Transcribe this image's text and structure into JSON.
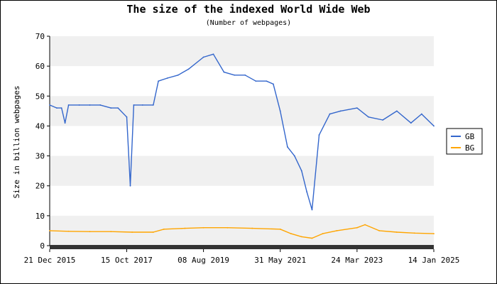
{
  "chart_data": {
    "type": "line",
    "title": "The size of the indexed World Wide Web",
    "subtitle": "(Number of webpages)",
    "xlabel": "",
    "ylabel": "Size in billion webpages",
    "ylim": [
      0,
      70
    ],
    "yticks": [
      0,
      10,
      20,
      30,
      40,
      50,
      60,
      70
    ],
    "x_start": "2015-12-21",
    "x_end": "2025-01-14",
    "xticks": [
      "21 Dec 2015",
      "15 Oct 2017",
      "08 Aug 2019",
      "31 May 2021",
      "24 Mar 2023",
      "14 Jan 2025"
    ],
    "xtick_dates": [
      "2015-12-21",
      "2017-10-15",
      "2019-08-08",
      "2021-05-31",
      "2023-03-24",
      "2025-01-14"
    ],
    "grid": "horizontal bands",
    "legend_position": "right",
    "series": [
      {
        "name": "GB",
        "color": "#3366cc",
        "points": [
          [
            "2015-12-21",
            47
          ],
          [
            "2016-02-20",
            46
          ],
          [
            "2016-04-01",
            46
          ],
          [
            "2016-05-01",
            41
          ],
          [
            "2016-06-01",
            47
          ],
          [
            "2016-09-01",
            47
          ],
          [
            "2016-12-01",
            47
          ],
          [
            "2017-03-01",
            47
          ],
          [
            "2017-06-01",
            46
          ],
          [
            "2017-08-01",
            46
          ],
          [
            "2017-10-15",
            43
          ],
          [
            "2017-11-15",
            20
          ],
          [
            "2017-12-15",
            47
          ],
          [
            "2018-03-01",
            47
          ],
          [
            "2018-06-01",
            47
          ],
          [
            "2018-07-15",
            55
          ],
          [
            "2018-10-01",
            56
          ],
          [
            "2019-01-01",
            57
          ],
          [
            "2019-04-01",
            59
          ],
          [
            "2019-08-08",
            63
          ],
          [
            "2019-11-01",
            64
          ],
          [
            "2020-02-01",
            58
          ],
          [
            "2020-05-01",
            57
          ],
          [
            "2020-08-01",
            57
          ],
          [
            "2020-11-01",
            55
          ],
          [
            "2021-02-01",
            55
          ],
          [
            "2021-04-01",
            54
          ],
          [
            "2021-05-31",
            45
          ],
          [
            "2021-08-01",
            33
          ],
          [
            "2021-10-01",
            30
          ],
          [
            "2021-12-01",
            25
          ],
          [
            "2022-01-15",
            18
          ],
          [
            "2022-03-01",
            12
          ],
          [
            "2022-05-01",
            37
          ],
          [
            "2022-08-01",
            44
          ],
          [
            "2022-11-01",
            45
          ],
          [
            "2023-03-24",
            46
          ],
          [
            "2023-07-01",
            43
          ],
          [
            "2023-11-01",
            42
          ],
          [
            "2024-03-01",
            45
          ],
          [
            "2024-07-01",
            41
          ],
          [
            "2024-10-01",
            44
          ],
          [
            "2025-01-14",
            40
          ]
        ]
      },
      {
        "name": "BG",
        "color": "#ffa500",
        "points": [
          [
            "2015-12-21",
            5
          ],
          [
            "2016-06-01",
            4.8
          ],
          [
            "2016-12-01",
            4.7
          ],
          [
            "2017-06-01",
            4.7
          ],
          [
            "2017-12-01",
            4.5
          ],
          [
            "2018-06-01",
            4.5
          ],
          [
            "2018-09-01",
            5.5
          ],
          [
            "2019-03-01",
            5.8
          ],
          [
            "2019-08-08",
            6
          ],
          [
            "2020-03-01",
            6
          ],
          [
            "2020-10-01",
            5.8
          ],
          [
            "2021-05-31",
            5.5
          ],
          [
            "2021-09-01",
            4
          ],
          [
            "2021-12-01",
            3
          ],
          [
            "2022-03-01",
            2.5
          ],
          [
            "2022-06-01",
            4
          ],
          [
            "2022-10-01",
            5
          ],
          [
            "2023-03-24",
            6
          ],
          [
            "2023-06-01",
            7
          ],
          [
            "2023-10-01",
            5
          ],
          [
            "2024-03-01",
            4.5
          ],
          [
            "2024-08-01",
            4.2
          ],
          [
            "2025-01-14",
            4
          ]
        ]
      }
    ]
  }
}
